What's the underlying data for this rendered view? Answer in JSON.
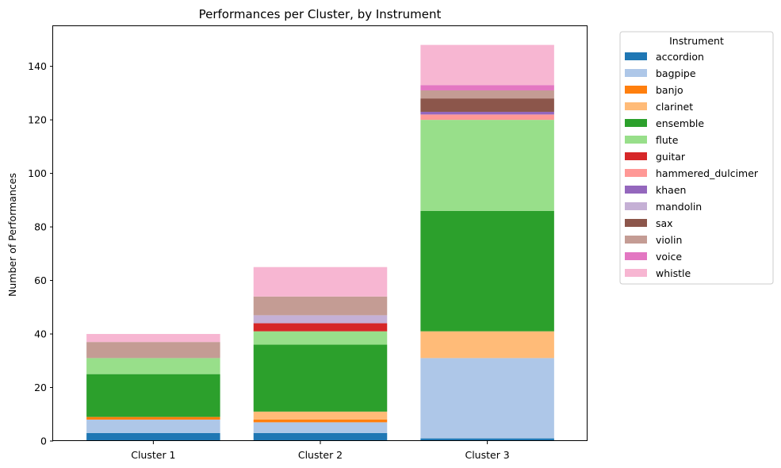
{
  "chart_data": {
    "type": "bar",
    "stacked": true,
    "title": "Performances per Cluster, by Instrument",
    "xlabel": "",
    "ylabel": "Number of Performances",
    "categories": [
      "Cluster 1",
      "Cluster 2",
      "Cluster 3"
    ],
    "ylim": [
      0,
      155
    ],
    "yticks": [
      0,
      20,
      40,
      60,
      80,
      100,
      120,
      140
    ],
    "grid": false,
    "legend": {
      "title": "Instrument",
      "placement": "outside-right"
    },
    "series": [
      {
        "name": "accordion",
        "color": "#1f77b4",
        "values": [
          3,
          3,
          1
        ]
      },
      {
        "name": "bagpipe",
        "color": "#aec7e8",
        "values": [
          5,
          4,
          30
        ]
      },
      {
        "name": "banjo",
        "color": "#ff7f0e",
        "values": [
          1,
          1,
          0
        ]
      },
      {
        "name": "clarinet",
        "color": "#ffbb78",
        "values": [
          0,
          3,
          10
        ]
      },
      {
        "name": "ensemble",
        "color": "#2ca02c",
        "values": [
          16,
          25,
          45
        ]
      },
      {
        "name": "flute",
        "color": "#98df8a",
        "values": [
          6,
          5,
          34
        ]
      },
      {
        "name": "guitar",
        "color": "#d62728",
        "values": [
          0,
          3,
          0
        ]
      },
      {
        "name": "hammered_dulcimer",
        "color": "#ff9896",
        "values": [
          0,
          0,
          2
        ]
      },
      {
        "name": "khaen",
        "color": "#9467bd",
        "values": [
          0,
          0,
          1
        ]
      },
      {
        "name": "mandolin",
        "color": "#c5b0d5",
        "values": [
          0,
          3,
          0
        ]
      },
      {
        "name": "sax",
        "color": "#8c564b",
        "values": [
          0,
          0,
          5
        ]
      },
      {
        "name": "violin",
        "color": "#c49c94",
        "values": [
          6,
          7,
          3
        ]
      },
      {
        "name": "voice",
        "color": "#e377c2",
        "values": [
          0,
          0,
          2
        ]
      },
      {
        "name": "whistle",
        "color": "#f7b6d2",
        "values": [
          3,
          11,
          15
        ]
      }
    ]
  }
}
